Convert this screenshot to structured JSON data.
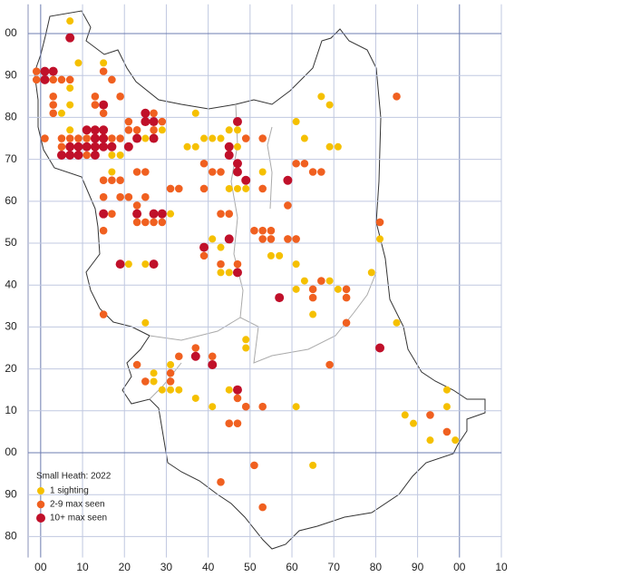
{
  "chart_data": {
    "type": "scatter",
    "title": "Small Heath:  2022",
    "xlim": [
      -3,
      110
    ],
    "ylim": [
      -25,
      107
    ],
    "xticks": [
      {
        "value": 0,
        "label": "00"
      },
      10,
      20,
      30,
      40,
      50,
      60,
      70,
      80,
      90,
      {
        "value": 100,
        "label": "00"
      },
      {
        "value": 110,
        "label": "10"
      }
    ],
    "yticks": [
      {
        "value": 100,
        "label": "00"
      },
      90,
      80,
      70,
      60,
      50,
      40,
      30,
      20,
      10,
      {
        "value": 0,
        "label": "00"
      },
      {
        "value": -10,
        "label": "90"
      },
      {
        "value": -20,
        "label": "80"
      }
    ],
    "grid": true,
    "legend": "lower left",
    "series": [
      {
        "name": "1 sighting",
        "color": "#f5c000",
        "x": [
          7,
          9,
          7,
          7,
          5,
          15,
          7,
          37,
          61,
          67,
          69,
          63,
          69,
          71,
          35,
          37,
          45,
          47,
          47,
          53,
          45,
          47,
          49,
          31,
          41,
          43,
          55,
          57,
          61,
          63,
          61,
          69,
          71,
          65,
          79,
          85,
          81,
          21,
          25,
          43,
          45,
          25,
          27,
          27,
          29,
          31,
          33,
          31,
          37,
          41,
          49,
          49,
          45,
          61,
          87,
          89,
          97,
          97,
          93,
          99,
          65,
          17,
          19,
          17,
          25,
          29,
          21,
          39,
          41,
          43
        ],
        "values": [
          103,
          93,
          87,
          83,
          81,
          93,
          77,
          81,
          79,
          85,
          83,
          75,
          73,
          73,
          73,
          73,
          77,
          77,
          73,
          67,
          63,
          63,
          63,
          57,
          51,
          49,
          47,
          47,
          45,
          41,
          39,
          41,
          39,
          33,
          43,
          31,
          51,
          45,
          45,
          43,
          43,
          31,
          19,
          17,
          15,
          15,
          15,
          21,
          13,
          11,
          27,
          25,
          15,
          11,
          9,
          7,
          15,
          11,
          3,
          3,
          -3,
          71,
          71,
          67,
          75,
          77,
          73,
          75,
          75,
          75
        ]
      },
      {
        "name": "2-9 max seen",
        "color": "#f06020",
        "x": [
          -1,
          -1,
          3,
          5,
          7,
          3,
          3,
          3,
          1,
          5,
          7,
          9,
          11,
          17,
          19,
          5,
          5,
          9,
          11,
          13,
          85,
          13,
          13,
          15,
          17,
          19,
          15,
          21,
          25,
          27,
          21,
          23,
          27,
          29,
          15,
          17,
          19,
          23,
          25,
          15,
          19,
          21,
          25,
          23,
          17,
          15,
          23,
          25,
          27,
          29,
          31,
          33,
          39,
          41,
          39,
          43,
          43,
          45,
          53,
          49,
          49,
          53,
          59,
          51,
          53,
          55,
          53,
          55,
          59,
          61,
          61,
          63,
          65,
          67,
          65,
          65,
          67,
          73,
          73,
          73,
          81,
          39,
          43,
          47,
          15,
          23,
          25,
          31,
          31,
          33,
          37,
          37,
          41,
          47,
          45,
          47,
          49,
          53,
          69,
          93,
          97,
          51,
          43,
          53
        ],
        "values": [
          91,
          89,
          89,
          89,
          89,
          85,
          83,
          81,
          75,
          75,
          75,
          75,
          75,
          75,
          75,
          73,
          71,
          71,
          71,
          71,
          85,
          85,
          83,
          91,
          89,
          85,
          81,
          79,
          79,
          81,
          77,
          77,
          77,
          79,
          65,
          65,
          65,
          67,
          67,
          61,
          61,
          61,
          61,
          59,
          57,
          53,
          55,
          55,
          55,
          55,
          63,
          63,
          69,
          67,
          63,
          67,
          57,
          57,
          75,
          75,
          65,
          63,
          59,
          53,
          53,
          53,
          51,
          51,
          51,
          51,
          69,
          69,
          67,
          67,
          39,
          37,
          41,
          39,
          37,
          31,
          55,
          47,
          45,
          45,
          33,
          21,
          17,
          17,
          19,
          23,
          25,
          23,
          23,
          13,
          7,
          7,
          11,
          11,
          21,
          9,
          5,
          -3,
          -7,
          -13
        ]
      },
      {
        "name": "10+ max seen",
        "color": "#c0102a",
        "x": [
          7,
          1,
          3,
          1,
          11,
          13,
          15,
          15,
          5,
          7,
          9,
          7,
          9,
          11,
          13,
          15,
          17,
          13,
          13,
          15,
          21,
          25,
          25,
          27,
          23,
          27,
          45,
          45,
          47,
          47,
          47,
          49,
          59,
          15,
          23,
          27,
          29,
          19,
          27,
          39,
          45,
          47,
          57,
          37,
          41,
          47,
          81
        ],
        "values": [
          99,
          91,
          91,
          89,
          77,
          77,
          77,
          83,
          71,
          71,
          71,
          73,
          73,
          73,
          73,
          73,
          73,
          71,
          75,
          75,
          73,
          81,
          79,
          79,
          75,
          75,
          73,
          71,
          79,
          69,
          67,
          65,
          65,
          57,
          57,
          57,
          57,
          45,
          45,
          49,
          51,
          43,
          37,
          23,
          21,
          15,
          25
        ]
      }
    ]
  }
}
